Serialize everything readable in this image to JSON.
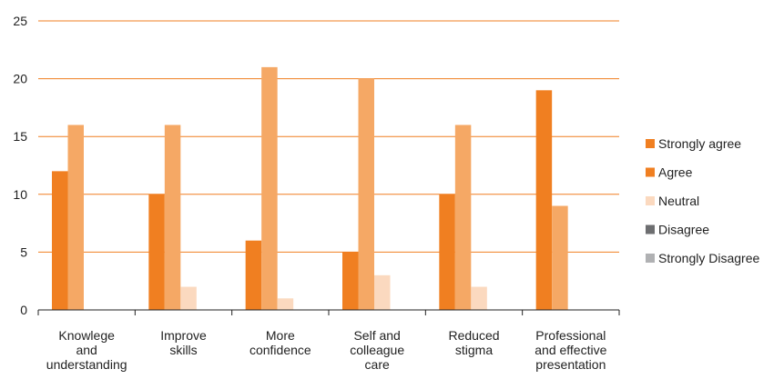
{
  "chart_data": {
    "type": "bar",
    "categories": [
      [
        "Knowlege",
        "and",
        "understanding"
      ],
      [
        "Improve",
        "skills"
      ],
      [
        "More",
        "confidence"
      ],
      [
        "Self and",
        "colleague",
        "care"
      ],
      [
        "Reduced",
        "stigma"
      ],
      [
        "Professional",
        "and effective",
        "presentation"
      ]
    ],
    "series": [
      {
        "name": "Strongly agree",
        "color": "#f07f21",
        "values": [
          12,
          10,
          6,
          5,
          10,
          19
        ]
      },
      {
        "name": "Agree",
        "color": "#f5a865",
        "values": [
          16,
          16,
          21,
          20,
          16,
          9
        ]
      },
      {
        "name": "Neutral",
        "color": "#fbd9bf",
        "values": [
          0,
          2,
          1,
          3,
          2,
          0
        ]
      },
      {
        "name": "Disagree",
        "color": "#6d6e70",
        "values": [
          0,
          0,
          0,
          0,
          0,
          0
        ]
      },
      {
        "name": "Strongly Disagree",
        "color": "#b0b1b3",
        "values": [
          0,
          0,
          0,
          0,
          0,
          0
        ]
      }
    ],
    "legend_colors": [
      "#f07f21",
      "#f07f21",
      "#fbd9bf",
      "#6d6e70",
      "#b0b1b3"
    ],
    "ylim": [
      0,
      25
    ],
    "yticks": [
      "0",
      "5",
      "10",
      "15",
      "20",
      "25"
    ],
    "grid": true,
    "gridline_color": "#f07f21",
    "legend_position": "right"
  }
}
